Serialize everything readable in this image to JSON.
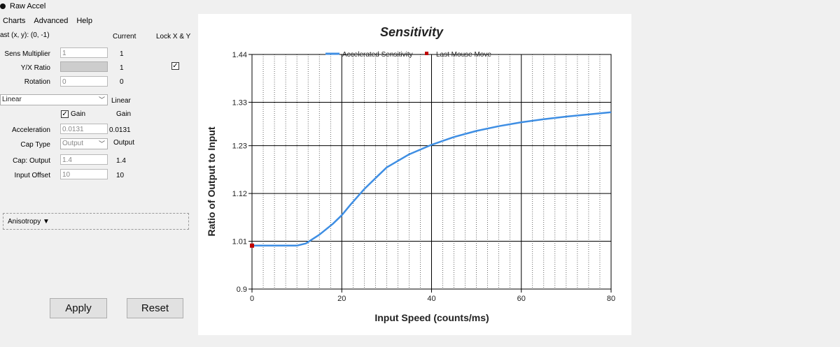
{
  "window": {
    "title": "Raw Accel"
  },
  "menu": {
    "items": [
      "Charts",
      "Advanced",
      "Help"
    ]
  },
  "left_panel": {
    "last_coord_label": "ast (x, y): (0, -1)",
    "current_header": "Current",
    "lock_label": "Lock X & Y",
    "lock_checked": true,
    "sens_multiplier": {
      "label": "Sens Multiplier",
      "value": "1",
      "current": "1"
    },
    "yx_ratio": {
      "label": "Y/X Ratio",
      "current": "1"
    },
    "rotation": {
      "label": "Rotation",
      "value": "0",
      "current": "0"
    },
    "accel_type": {
      "selected": "Linear",
      "current": "Linear"
    },
    "gain": {
      "label": "Gain",
      "checked": true,
      "current": "Gain"
    },
    "acceleration": {
      "label": "Acceleration",
      "value": "0.0131",
      "current": "0.0131"
    },
    "cap_type": {
      "label": "Cap Type",
      "selected": "Output",
      "current": "Output"
    },
    "cap_output": {
      "label": "Cap: Output",
      "value": "1.4",
      "current": "1.4"
    },
    "input_offset": {
      "label": "Input Offset",
      "value": "10",
      "current": "10"
    },
    "anisotropy_label": "Anisotropy ▼",
    "apply_label": "Apply",
    "reset_label": "Reset"
  },
  "chart": {
    "title": "Sensitivity",
    "legend": {
      "series_label": "Accelerated Sensitivity",
      "marker_label": "Last Mouse Move"
    },
    "xlabel": "Input Speed (counts/ms)",
    "ylabel": "Ratio of Output to Input",
    "x_ticks": [
      "0",
      "20",
      "40",
      "60",
      "80"
    ],
    "y_ticks": [
      "1.44",
      "1.33",
      "1.23",
      "1.12",
      "1.01",
      "0.9"
    ]
  },
  "colors": {
    "series": "#3e8ee3",
    "marker": "#c00000"
  },
  "chart_data": {
    "type": "line",
    "title": "Sensitivity",
    "xlabel": "Input Speed (counts/ms)",
    "ylabel": "Ratio of Output to Input",
    "xlim": [
      0,
      80
    ],
    "ylim": [
      0.9,
      1.44
    ],
    "y_tick_values": [
      1.44,
      1.33,
      1.23,
      1.12,
      1.01,
      0.9
    ],
    "x_tick_values": [
      0,
      20,
      40,
      60,
      80
    ],
    "grid": true,
    "legend_position": "top",
    "series": [
      {
        "name": "Accelerated Sensitivity",
        "x": [
          0,
          5,
          10,
          12,
          15,
          18,
          20,
          22,
          25,
          28,
          30,
          35,
          40,
          45,
          50,
          55,
          60,
          65,
          70,
          75,
          80
        ],
        "y": [
          1.0,
          1.0,
          1.0,
          1.005,
          1.025,
          1.05,
          1.07,
          1.095,
          1.13,
          1.16,
          1.18,
          1.21,
          1.232,
          1.25,
          1.264,
          1.275,
          1.284,
          1.291,
          1.297,
          1.302,
          1.307
        ]
      }
    ],
    "markers": [
      {
        "name": "Last Mouse Move",
        "x": 0,
        "y": 1.0
      }
    ]
  }
}
